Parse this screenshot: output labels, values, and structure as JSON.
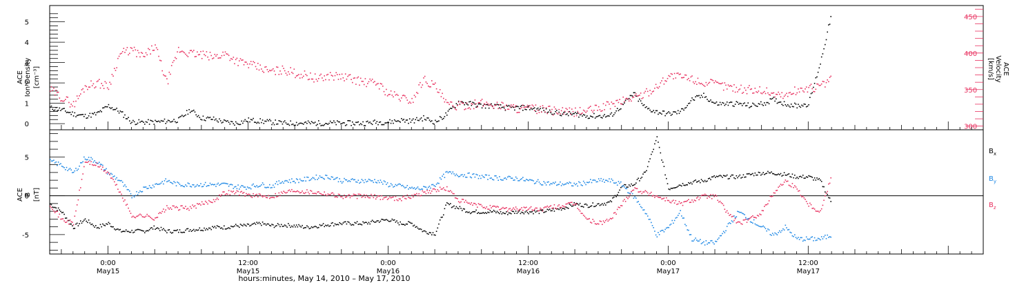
{
  "colors": {
    "black": "#000000",
    "red": "#e8305f",
    "blue": "#1e88e5"
  },
  "x_axis": {
    "title": "hours:minutes, May 14, 2010 – May 17, 2010",
    "ticks": [
      {
        "hour": 24,
        "time": "0:00",
        "date": "May15"
      },
      {
        "hour": 36,
        "time": "12:00",
        "date": "May15"
      },
      {
        "hour": 48,
        "time": "0:00",
        "date": "May16"
      },
      {
        "hour": 60,
        "time": "12:00",
        "date": "May16"
      },
      {
        "hour": 72,
        "time": "0:00",
        "date": "May17"
      },
      {
        "hour": 84,
        "time": "12:00",
        "date": "May17"
      }
    ]
  },
  "chart_data": [
    {
      "type": "scatter",
      "panel": "top",
      "ylabel_left": [
        "ACE",
        "Ion Density",
        "[cm⁻³]"
      ],
      "ylabel_right": [
        "ACE",
        "Velocity",
        "[km/s]"
      ],
      "xlim_hours": [
        19,
        99
      ],
      "ylim_left": [
        -0.3,
        5.8
      ],
      "yticks_left": [
        0,
        1,
        2,
        3,
        4,
        5
      ],
      "ylim_right": [
        295,
        465
      ],
      "yticks_right": [
        300,
        350,
        400,
        450
      ],
      "series": [
        {
          "axis": "left",
          "color": "#000000",
          "x": [
            19,
            20,
            21,
            22,
            23,
            24,
            25,
            26,
            27,
            28,
            29,
            30,
            31,
            32,
            33,
            34,
            35,
            36,
            37,
            38,
            39,
            40,
            41,
            42,
            43,
            44,
            45,
            46,
            47,
            48,
            49,
            50,
            51,
            52,
            53,
            54,
            55,
            56,
            57,
            58,
            59,
            60,
            61,
            62,
            63,
            64,
            65,
            66,
            67,
            68,
            69,
            70,
            71,
            72,
            73,
            74,
            75,
            76,
            77,
            78,
            79,
            80,
            81,
            82,
            83,
            84,
            85,
            86
          ],
          "y": [
            0.8,
            0.7,
            0.5,
            0.4,
            0.5,
            0.9,
            0.6,
            0.1,
            0.1,
            0.1,
            0.15,
            0.2,
            0.7,
            0.3,
            0.25,
            0.1,
            0.05,
            0.2,
            0.15,
            0.1,
            0.05,
            0.05,
            0.05,
            0.05,
            0.05,
            0.05,
            0.05,
            0.05,
            0.1,
            0.1,
            0.2,
            0.15,
            0.3,
            0.1,
            0.5,
            1.1,
            1.0,
            0.9,
            0.9,
            0.8,
            0.8,
            0.8,
            0.7,
            0.6,
            0.5,
            0.5,
            0.4,
            0.4,
            0.4,
            0.9,
            1.5,
            0.8,
            0.6,
            0.5,
            0.6,
            1.2,
            1.4,
            1.0,
            1.0,
            1.0,
            0.9,
            1.0,
            1.2,
            1.0,
            0.9,
            1.0,
            3.0,
            5.5
          ]
        },
        {
          "axis": "right",
          "color": "#e8305f",
          "x": [
            19,
            20,
            21,
            22,
            23,
            24,
            25,
            26,
            27,
            28,
            29,
            30,
            31,
            32,
            33,
            34,
            35,
            36,
            37,
            38,
            39,
            40,
            41,
            42,
            43,
            44,
            45,
            46,
            47,
            48,
            49,
            50,
            51,
            52,
            53,
            54,
            55,
            56,
            57,
            58,
            59,
            60,
            61,
            62,
            63,
            64,
            65,
            66,
            67,
            68,
            69,
            70,
            71,
            72,
            73,
            74,
            75,
            76,
            77,
            78,
            79,
            80,
            81,
            82,
            83,
            84,
            85,
            86
          ],
          "y": [
            350,
            340,
            330,
            355,
            360,
            355,
            400,
            405,
            395,
            410,
            360,
            405,
            400,
            398,
            395,
            400,
            390,
            385,
            380,
            375,
            378,
            373,
            370,
            365,
            370,
            368,
            365,
            360,
            360,
            345,
            340,
            335,
            365,
            355,
            330,
            328,
            330,
            332,
            330,
            328,
            325,
            325,
            323,
            322,
            320,
            320,
            322,
            325,
            330,
            335,
            340,
            345,
            355,
            370,
            368,
            365,
            360,
            358,
            355,
            352,
            350,
            350,
            345,
            342,
            350,
            352,
            355,
            365
          ]
        }
      ]
    },
    {
      "type": "scatter",
      "panel": "bottom",
      "ylabel_left": [
        "ACE",
        "B",
        "[nT]"
      ],
      "xlim_hours": [
        19,
        99
      ],
      "ylim": [
        -7.5,
        8.5
      ],
      "yticks": [
        -5,
        0,
        5
      ],
      "legend": [
        {
          "label": "B",
          "sub": "x",
          "color": "#000000"
        },
        {
          "label": "B",
          "sub": "y",
          "color": "#1e88e5"
        },
        {
          "label": "B",
          "sub": "z",
          "color": "#e8305f"
        }
      ],
      "series": [
        {
          "name": "Bx",
          "color": "#000000",
          "x": [
            19,
            20,
            21,
            22,
            23,
            24,
            25,
            26,
            27,
            28,
            29,
            30,
            31,
            32,
            33,
            34,
            35,
            36,
            37,
            38,
            39,
            40,
            41,
            42,
            43,
            44,
            45,
            46,
            47,
            48,
            49,
            50,
            51,
            52,
            53,
            54,
            55,
            56,
            57,
            58,
            59,
            60,
            61,
            62,
            63,
            64,
            65,
            66,
            67,
            68,
            69,
            70,
            71,
            72,
            73,
            74,
            75,
            76,
            77,
            78,
            79,
            80,
            81,
            82,
            83,
            84,
            85,
            86
          ],
          "y": [
            -1,
            -2,
            -4,
            -3,
            -4,
            -3.5,
            -4.5,
            -4.5,
            -4.5,
            -4,
            -4.5,
            -4.5,
            -4.3,
            -4.2,
            -4,
            -4,
            -3.8,
            -3.8,
            -3.5,
            -3.8,
            -3.7,
            -3.8,
            -4,
            -3.8,
            -3.6,
            -3.5,
            -3.5,
            -3.5,
            -3.2,
            -3,
            -3.5,
            -3.5,
            -4.5,
            -4.8,
            -1,
            -1.5,
            -2,
            -2,
            -2,
            -2.2,
            -2,
            -2,
            -2,
            -1.8,
            -1.5,
            -1,
            -1.2,
            -1,
            -0.8,
            1.2,
            1.5,
            3,
            7.5,
            1,
            1.5,
            1.8,
            2,
            2.5,
            2.5,
            2.5,
            2.8,
            3,
            3,
            2.8,
            2.5,
            2.5,
            2,
            -1
          ]
        },
        {
          "name": "By",
          "color": "#1e88e5",
          "x": [
            19,
            20,
            21,
            22,
            23,
            24,
            25,
            26,
            27,
            28,
            29,
            30,
            31,
            32,
            33,
            34,
            35,
            36,
            37,
            38,
            39,
            40,
            41,
            42,
            43,
            44,
            45,
            46,
            47,
            48,
            49,
            50,
            51,
            52,
            53,
            54,
            55,
            56,
            57,
            58,
            59,
            60,
            61,
            62,
            63,
            64,
            65,
            66,
            67,
            68,
            69,
            70,
            71,
            72,
            73,
            74,
            75,
            76,
            77,
            78,
            79,
            80,
            81,
            82,
            83,
            84,
            85,
            86
          ],
          "y": [
            4.5,
            4,
            3,
            5,
            4.5,
            3,
            2,
            0,
            1,
            1.5,
            2,
            1.5,
            1.5,
            1.5,
            1.5,
            1.5,
            1.2,
            1.2,
            1.5,
            1.3,
            2,
            2,
            2.2,
            2.5,
            2.5,
            2,
            2,
            2,
            2,
            1.5,
            1.3,
            1,
            1,
            1.5,
            3,
            2.8,
            2.7,
            2.5,
            2.4,
            2.3,
            2.3,
            2,
            1.8,
            1.6,
            1.6,
            1.5,
            1.8,
            2,
            2,
            1.5,
            0,
            -2,
            -5,
            -4,
            -2,
            -5.5,
            -6,
            -6,
            -4,
            -2,
            -3,
            -4,
            -5,
            -4,
            -5.5,
            -5.5,
            -5.5,
            -5
          ]
        },
        {
          "name": "Bz",
          "color": "#e8305f",
          "x": [
            19,
            20,
            21,
            22,
            23,
            24,
            25,
            26,
            27,
            28,
            29,
            30,
            31,
            32,
            33,
            34,
            35,
            36,
            37,
            38,
            39,
            40,
            41,
            42,
            43,
            44,
            45,
            46,
            47,
            48,
            49,
            50,
            51,
            52,
            53,
            54,
            55,
            56,
            57,
            58,
            59,
            60,
            61,
            62,
            63,
            64,
            65,
            66,
            67,
            68,
            69,
            70,
            71,
            72,
            73,
            74,
            75,
            76,
            77,
            78,
            79,
            80,
            81,
            82,
            83,
            84,
            85,
            86
          ],
          "y": [
            -1,
            -3,
            -3.5,
            4.5,
            4,
            3,
            0.5,
            -2.5,
            -2.5,
            -2.8,
            -1.5,
            -1.5,
            -1.5,
            -1,
            -0.5,
            0.5,
            0.5,
            0.2,
            0,
            0,
            0.5,
            0.8,
            0.6,
            0.5,
            0.3,
            0,
            0,
            0,
            -0.1,
            -0.2,
            -0.3,
            0,
            0.5,
            0.8,
            1,
            -0.5,
            -1,
            -1.3,
            -1.5,
            -1.6,
            -1.6,
            -1.6,
            -1.7,
            -1.4,
            -1.2,
            -1,
            -3,
            -3.5,
            -3,
            -1,
            1,
            0.5,
            0,
            -0.5,
            -1,
            -0.5,
            0,
            0,
            -2,
            -3.5,
            -3,
            -2,
            0.5,
            2,
            1,
            -1,
            -2,
            2.8
          ]
        }
      ]
    }
  ]
}
